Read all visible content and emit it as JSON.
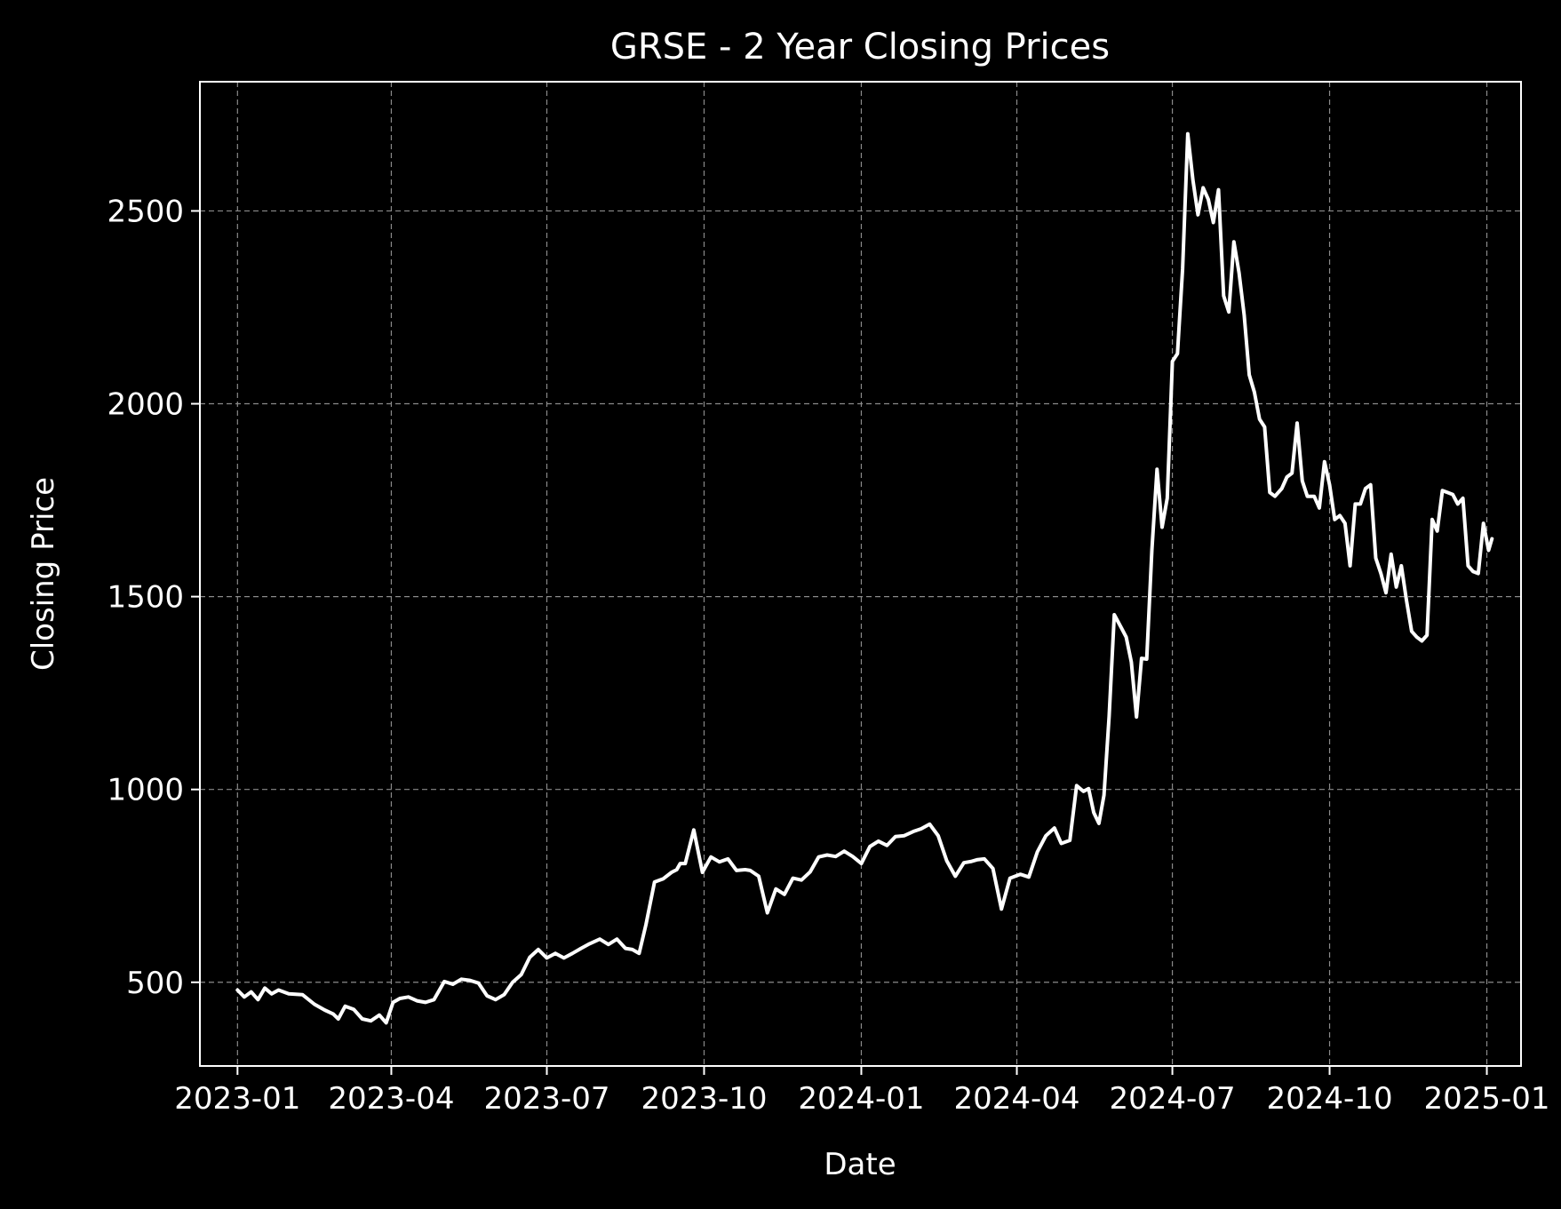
{
  "chart_data": {
    "type": "line",
    "title": "GRSE - 2 Year Closing Prices",
    "xlabel": "Date",
    "ylabel": "Closing Price",
    "xlim": [
      "2022-12-10",
      "2025-01-21"
    ],
    "ylim": [
      283,
      2835
    ],
    "grid": true,
    "colors": {
      "background": "#000000",
      "line": "#ffffff",
      "axes": "#ffffff",
      "grid": "#8a8a8a"
    },
    "xticks": [
      "2023-01",
      "2023-04",
      "2023-07",
      "2023-10",
      "2024-01",
      "2024-04",
      "2024-07",
      "2024-10",
      "2025-01"
    ],
    "yticks": [
      500,
      1000,
      1500,
      2000,
      2500
    ],
    "series": [
      {
        "x": [
          "2023-01-01",
          "2023-01-05",
          "2023-01-09",
          "2023-01-13",
          "2023-01-17",
          "2023-01-21",
          "2023-01-25",
          "2023-01-31",
          "2023-02-08",
          "2023-02-15",
          "2023-02-21",
          "2023-02-26",
          "2023-03-01",
          "2023-03-05",
          "2023-03-10",
          "2023-03-15",
          "2023-03-20",
          "2023-03-25",
          "2023-03-29",
          "2023-04-02",
          "2023-04-06",
          "2023-04-11",
          "2023-04-16",
          "2023-04-21",
          "2023-04-26",
          "2023-05-02",
          "2023-05-07",
          "2023-05-12",
          "2023-05-17",
          "2023-05-22",
          "2023-05-27",
          "2023-06-01",
          "2023-06-06",
          "2023-06-11",
          "2023-06-16",
          "2023-06-21",
          "2023-06-26",
          "2023-07-01",
          "2023-07-06",
          "2023-07-11",
          "2023-07-16",
          "2023-07-21",
          "2023-07-26",
          "2023-08-01",
          "2023-08-06",
          "2023-08-11",
          "2023-08-16",
          "2023-08-20",
          "2023-08-24",
          "2023-08-28",
          "2023-09-02",
          "2023-09-07",
          "2023-09-12",
          "2023-09-15",
          "2023-09-17",
          "2023-09-20",
          "2023-09-25",
          "2023-09-30",
          "2023-10-05",
          "2023-10-10",
          "2023-10-15",
          "2023-10-20",
          "2023-10-25",
          "2023-10-28",
          "2023-11-02",
          "2023-11-07",
          "2023-11-12",
          "2023-11-17",
          "2023-11-22",
          "2023-11-27",
          "2023-12-02",
          "2023-12-07",
          "2023-12-12",
          "2023-12-17",
          "2023-12-22",
          "2023-12-27",
          "2024-01-01",
          "2024-01-06",
          "2024-01-11",
          "2024-01-16",
          "2024-01-21",
          "2024-01-26",
          "2024-02-01",
          "2024-02-05",
          "2024-02-10",
          "2024-02-15",
          "2024-02-20",
          "2024-02-25",
          "2024-03-01",
          "2024-03-05",
          "2024-03-09",
          "2024-03-13",
          "2024-03-18",
          "2024-03-23",
          "2024-03-28",
          "2024-04-03",
          "2024-04-08",
          "2024-04-13",
          "2024-04-18",
          "2024-04-23",
          "2024-04-27",
          "2024-05-02",
          "2024-05-06",
          "2024-05-10",
          "2024-05-13",
          "2024-05-16",
          "2024-05-19",
          "2024-05-22",
          "2024-05-25",
          "2024-05-28",
          "2024-06-01",
          "2024-06-04",
          "2024-06-07",
          "2024-06-10",
          "2024-06-13",
          "2024-06-16",
          "2024-06-19",
          "2024-06-22",
          "2024-06-25",
          "2024-06-28",
          "2024-07-01",
          "2024-07-04",
          "2024-07-07",
          "2024-07-10",
          "2024-07-13",
          "2024-07-16",
          "2024-07-19",
          "2024-07-22",
          "2024-07-25",
          "2024-07-28",
          "2024-07-31",
          "2024-08-03",
          "2024-08-06",
          "2024-08-09",
          "2024-08-12",
          "2024-08-15",
          "2024-08-18",
          "2024-08-21",
          "2024-08-24",
          "2024-08-27",
          "2024-08-30",
          "2024-09-03",
          "2024-09-06",
          "2024-09-09",
          "2024-09-12",
          "2024-09-15",
          "2024-09-18",
          "2024-09-22",
          "2024-09-25",
          "2024-09-28",
          "2024-10-01",
          "2024-10-04",
          "2024-10-07",
          "2024-10-10",
          "2024-10-13",
          "2024-10-16",
          "2024-10-19",
          "2024-10-22",
          "2024-10-25",
          "2024-10-28",
          "2024-10-31",
          "2024-11-03",
          "2024-11-06",
          "2024-11-09",
          "2024-11-12",
          "2024-11-15",
          "2024-11-18",
          "2024-11-21",
          "2024-11-24",
          "2024-11-27",
          "2024-11-30",
          "2024-12-03",
          "2024-12-06",
          "2024-12-09",
          "2024-12-12",
          "2024-12-15",
          "2024-12-18",
          "2024-12-21",
          "2024-12-24",
          "2024-12-27",
          "2024-12-30",
          "2025-01-02",
          "2025-01-04"
        ],
        "values": [
          480,
          462,
          475,
          455,
          485,
          470,
          480,
          470,
          468,
          443,
          428,
          418,
          405,
          438,
          430,
          405,
          400,
          415,
          395,
          448,
          458,
          462,
          452,
          448,
          455,
          502,
          495,
          508,
          505,
          498,
          465,
          455,
          468,
          500,
          520,
          565,
          585,
          563,
          575,
          563,
          575,
          588,
          600,
          612,
          598,
          612,
          588,
          585,
          575,
          650,
          760,
          768,
          785,
          792,
          808,
          808,
          895,
          785,
          825,
          812,
          820,
          790,
          792,
          790,
          775,
          680,
          742,
          728,
          770,
          765,
          786,
          825,
          830,
          826,
          840,
          826,
          808,
          852,
          866,
          855,
          878,
          880,
          892,
          898,
          910,
          880,
          815,
          775,
          810,
          813,
          818,
          820,
          795,
          690,
          770,
          780,
          773,
          838,
          880,
          900,
          860,
          868,
          1010,
          995,
          1002,
          940,
          912,
          985,
          1190,
          1453,
          1420,
          1395,
          1330,
          1188,
          1340,
          1338,
          1620,
          1830,
          1680,
          1755,
          2110,
          2130,
          2350,
          2700,
          2580,
          2490,
          2560,
          2530,
          2470,
          2555,
          2280,
          2238,
          2420,
          2340,
          2230,
          2075,
          2030,
          1960,
          1940,
          1770,
          1760,
          1780,
          1810,
          1820,
          1950,
          1800,
          1760,
          1760,
          1730,
          1850,
          1790,
          1700,
          1710,
          1690,
          1580,
          1740,
          1740,
          1780,
          1790,
          1600,
          1560,
          1510,
          1610,
          1525,
          1580,
          1490,
          1410,
          1395,
          1385,
          1400,
          1700,
          1670,
          1775,
          1770,
          1765,
          1740,
          1755,
          1580,
          1565,
          1560,
          1690,
          1620,
          1650
        ]
      }
    ]
  }
}
